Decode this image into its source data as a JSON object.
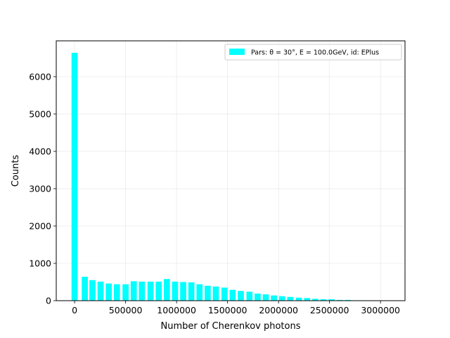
{
  "chart_data": {
    "type": "bar",
    "xlabel": "Number of Cherenkov photons",
    "ylabel": "Counts",
    "legend": {
      "label": "Pars: θ = 30°, E = 100.0GeV, id: EPlus",
      "placement": "top-right"
    },
    "color": "#00ffff",
    "xlim": [
      -180000,
      3240000
    ],
    "ylim": [
      0,
      6960
    ],
    "grid": true,
    "bin_width": 60000,
    "x": [
      0,
      100000,
      175000,
      255000,
      335000,
      415000,
      500000,
      580000,
      660000,
      745000,
      825000,
      905000,
      985000,
      1065000,
      1145000,
      1225000,
      1305000,
      1385000,
      1470000,
      1550000,
      1630000,
      1715000,
      1795000,
      1875000,
      1955000,
      2035000,
      2115000,
      2200000,
      2280000,
      2360000,
      2440000,
      2520000,
      2600000,
      2680000,
      2760000,
      2840000,
      2920000,
      3000000,
      3080000
    ],
    "values": [
      6640,
      640,
      550,
      510,
      460,
      440,
      440,
      520,
      510,
      510,
      510,
      580,
      510,
      500,
      490,
      440,
      400,
      380,
      350,
      290,
      260,
      240,
      190,
      170,
      140,
      120,
      100,
      80,
      70,
      50,
      40,
      40,
      20,
      20,
      10,
      10,
      10,
      5,
      5
    ],
    "xticks": [
      0,
      500000,
      1000000,
      1500000,
      2000000,
      2500000,
      3000000
    ],
    "xtick_labels": [
      "0",
      "500000",
      "1000000",
      "1500000",
      "2000000",
      "2500000",
      "3000000"
    ],
    "yticks": [
      0,
      1000,
      2000,
      3000,
      4000,
      5000,
      6000
    ],
    "ytick_labels": [
      "0",
      "1000",
      "2000",
      "3000",
      "4000",
      "5000",
      "6000"
    ]
  }
}
